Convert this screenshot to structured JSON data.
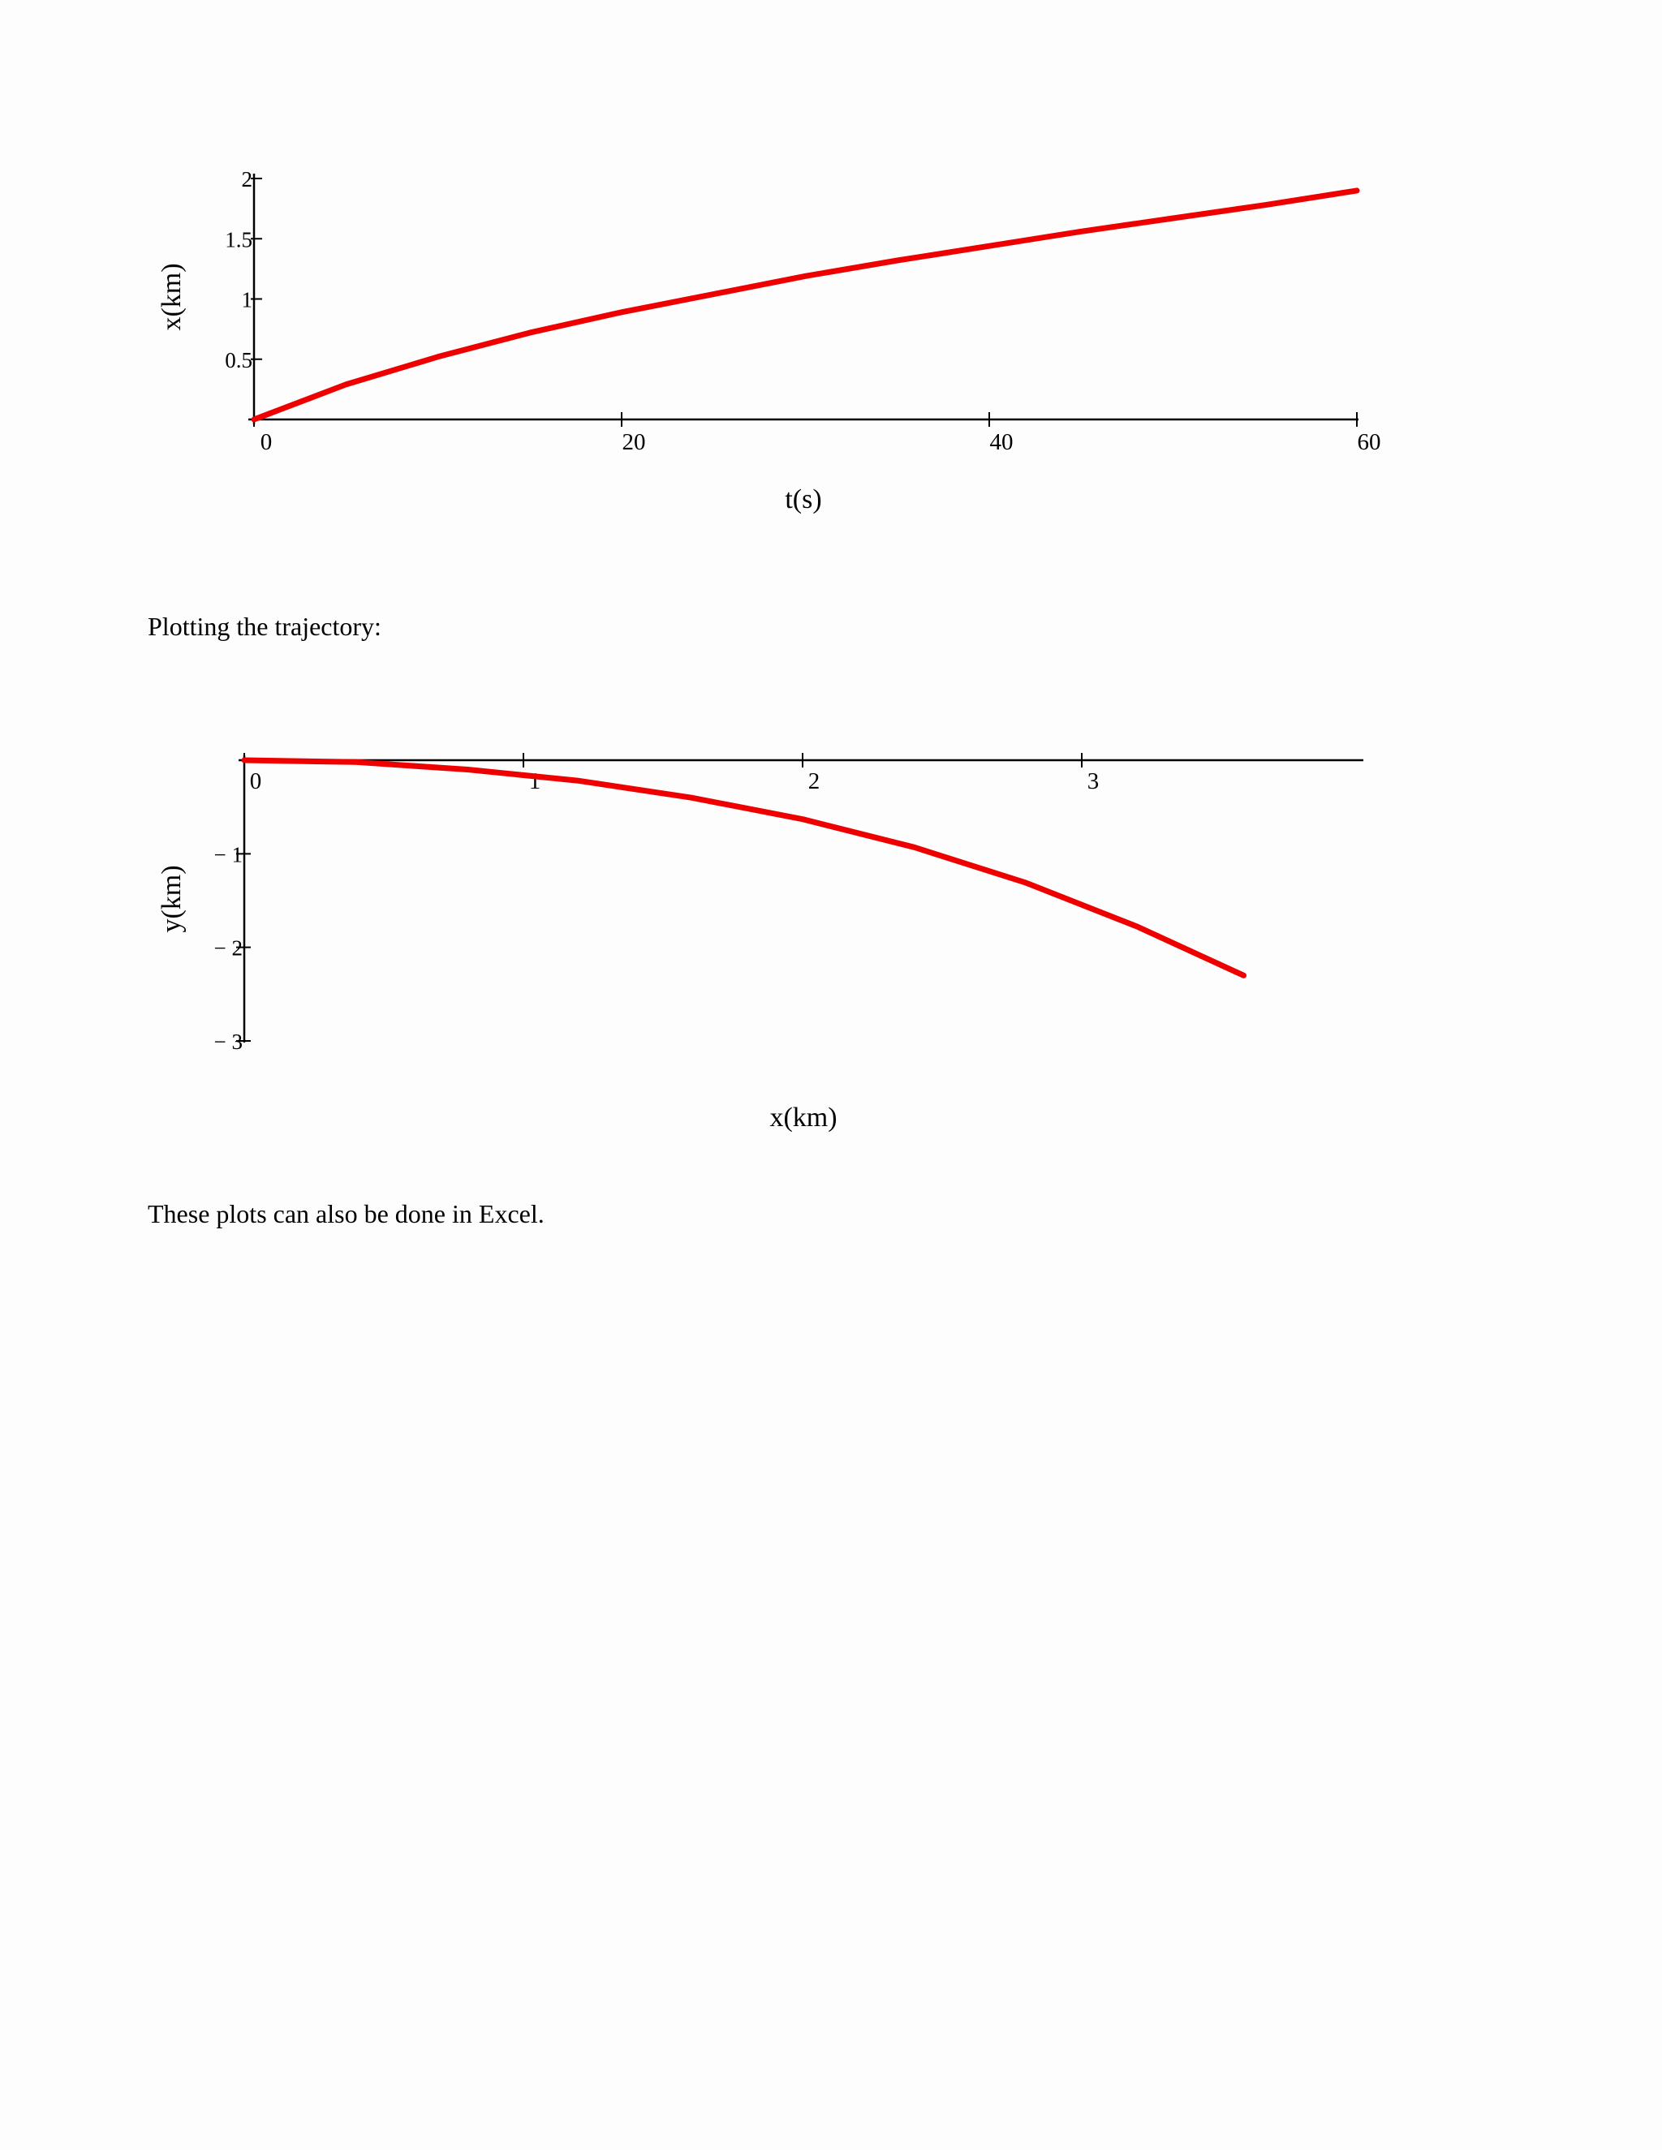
{
  "text": {
    "paragraph1": "Plotting the trajectory:",
    "paragraph2": "These plots can also be done in Excel."
  },
  "colors": {
    "curve": "#ee0000",
    "axis": "#000000",
    "background": "#fdfdfd"
  },
  "chart_data": [
    {
      "type": "line",
      "title": "",
      "xlabel": "t(s)",
      "ylabel": "x(km)",
      "xlim": [
        0,
        60
      ],
      "ylim": [
        0,
        2
      ],
      "x_ticks": [
        0,
        20,
        40,
        60
      ],
      "x_tick_labels": [
        "0",
        "20",
        "40",
        "60"
      ],
      "y_ticks": [
        0.5,
        1,
        1.5,
        2
      ],
      "y_tick_labels": [
        "0.5",
        "1",
        "1.5",
        "2"
      ],
      "grid": false,
      "series": [
        {
          "x": [
            0,
            5,
            10,
            15,
            20,
            25,
            30,
            35,
            40,
            45,
            50,
            55,
            60
          ],
          "y": [
            0,
            0.29,
            0.52,
            0.72,
            0.89,
            1.04,
            1.19,
            1.32,
            1.44,
            1.56,
            1.67,
            1.78,
            1.9
          ]
        }
      ]
    },
    {
      "type": "line",
      "title": "",
      "xlabel": "x(km)",
      "ylabel": "y(km)",
      "xlim": [
        0,
        4
      ],
      "ylim": [
        -3,
        0
      ],
      "x_ticks": [
        0,
        1,
        2,
        3
      ],
      "x_tick_labels": [
        "0",
        "1",
        "2",
        "3"
      ],
      "y_ticks": [
        -1,
        -2,
        -3
      ],
      "y_tick_labels": [
        "− 1",
        "− 2",
        "− 3"
      ],
      "grid": false,
      "series": [
        {
          "x": [
            0,
            0.4,
            0.8,
            1.2,
            1.6,
            2.0,
            2.4,
            2.8,
            3.2,
            3.58
          ],
          "y": [
            0,
            -0.02,
            -0.1,
            -0.22,
            -0.4,
            -0.63,
            -0.93,
            -1.31,
            -1.78,
            -2.3
          ]
        }
      ]
    }
  ]
}
